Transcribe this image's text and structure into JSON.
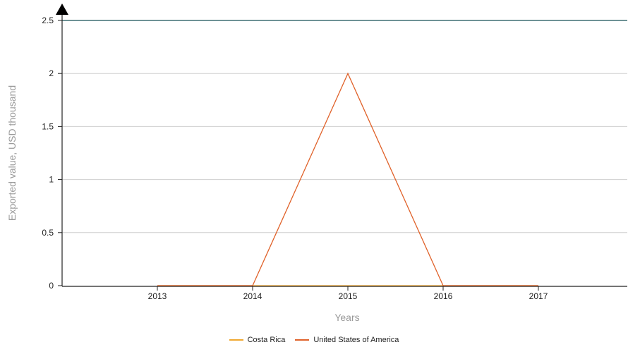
{
  "chart_data": {
    "type": "line",
    "xlabel": "Years",
    "ylabel": "Exported value, USD thousand",
    "categories": [
      "2013",
      "2014",
      "2015",
      "2016",
      "2017"
    ],
    "y_ticks": [
      "0",
      "0.5",
      "1",
      "1.5",
      "2",
      "2.5"
    ],
    "ylim": [
      0,
      2.5
    ],
    "grid": true,
    "legend_position": "bottom",
    "series": [
      {
        "name": "Costa Rica",
        "color": "#f0a830",
        "values": [
          0,
          0,
          0,
          0,
          0
        ]
      },
      {
        "name": "United States of America",
        "color": "#e0622a",
        "values": [
          0,
          0,
          2,
          0,
          0
        ]
      }
    ]
  }
}
